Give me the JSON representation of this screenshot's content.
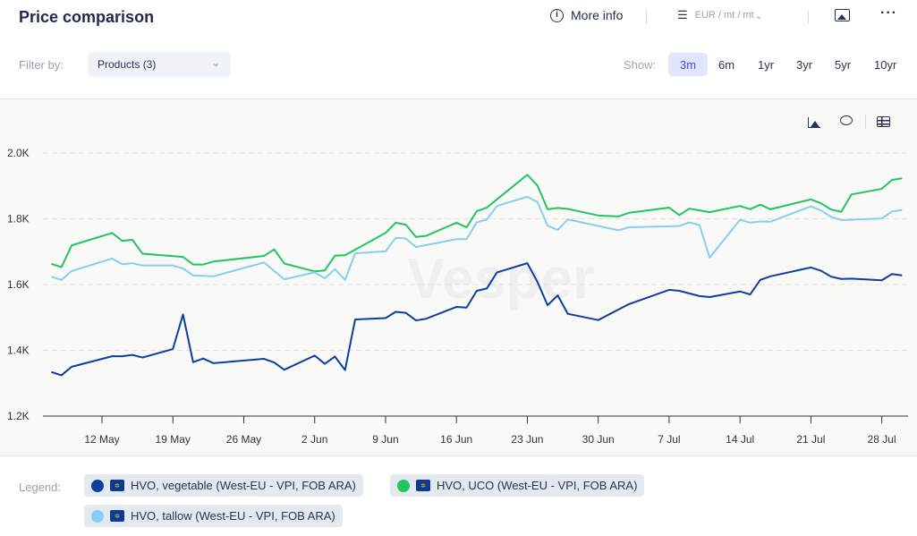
{
  "header": {
    "title": "Price comparison",
    "more_info": "More info",
    "unit": "EUR / mt / mt",
    "icons": [
      "info-icon",
      "sliders-icon",
      "image-icon",
      "more-icon"
    ]
  },
  "filter": {
    "label": "Filter by:",
    "value": "Products (3)"
  },
  "show": {
    "label": "Show:",
    "ranges": [
      "3m",
      "6m",
      "1yr",
      "3yr",
      "5yr",
      "10yr"
    ],
    "active": "3m"
  },
  "legend": {
    "label": "Legend:"
  },
  "watermark": "Vesper",
  "chart_data": {
    "type": "line",
    "title": "Price comparison",
    "x_unit": "days since 12 May",
    "xticks": [
      {
        "day": 0,
        "label": "12 May"
      },
      {
        "day": 7,
        "label": "19 May"
      },
      {
        "day": 14,
        "label": "26 May"
      },
      {
        "day": 21,
        "label": "2 Jun"
      },
      {
        "day": 28,
        "label": "9 Jun"
      },
      {
        "day": 35,
        "label": "16 Jun"
      },
      {
        "day": 42,
        "label": "23 Jun"
      },
      {
        "day": 49,
        "label": "30 Jun"
      },
      {
        "day": 56,
        "label": "7 Jul"
      },
      {
        "day": 63,
        "label": "14 Jul"
      },
      {
        "day": 70,
        "label": "21 Jul"
      },
      {
        "day": 77,
        "label": "28 Jul"
      }
    ],
    "yticks": [
      {
        "value": 1200,
        "label": "1.2K"
      },
      {
        "value": 1400,
        "label": "1.4K"
      },
      {
        "value": 1600,
        "label": "1.6K"
      },
      {
        "value": 1800,
        "label": "1.8K"
      },
      {
        "value": 2000,
        "label": "2.0K"
      }
    ],
    "ylim": [
      1200,
      2000
    ],
    "grid": true,
    "legend_position": "bottom",
    "series": [
      {
        "name": "HVO, vegetable (West-EU - VPI, FOB ARA)",
        "color": "#0b3fa0",
        "points": [
          [
            -5,
            1334
          ],
          [
            -4,
            1324
          ],
          [
            -3,
            1350
          ],
          [
            1,
            1382
          ],
          [
            2,
            1382
          ],
          [
            3,
            1386
          ],
          [
            4,
            1378
          ],
          [
            7,
            1404
          ],
          [
            8,
            1509
          ],
          [
            9,
            1364
          ],
          [
            10,
            1375
          ],
          [
            11,
            1361
          ],
          [
            16,
            1374
          ],
          [
            17,
            1363
          ],
          [
            18,
            1341
          ],
          [
            21,
            1384
          ],
          [
            22,
            1359
          ],
          [
            23,
            1381
          ],
          [
            24,
            1340
          ],
          [
            25,
            1494
          ],
          [
            28,
            1498
          ],
          [
            29,
            1517
          ],
          [
            30,
            1514
          ],
          [
            31,
            1491
          ],
          [
            32,
            1496
          ],
          [
            35,
            1532
          ],
          [
            36,
            1530
          ],
          [
            37,
            1581
          ],
          [
            38,
            1588
          ],
          [
            39,
            1637
          ],
          [
            42,
            1665
          ],
          [
            43,
            1608
          ],
          [
            44,
            1537
          ],
          [
            45,
            1567
          ],
          [
            46,
            1511
          ],
          [
            49,
            1492
          ],
          [
            52,
            1540
          ],
          [
            56,
            1584
          ],
          [
            57,
            1581
          ],
          [
            59,
            1565
          ],
          [
            60,
            1562
          ],
          [
            63,
            1579
          ],
          [
            64,
            1570
          ],
          [
            65,
            1614
          ],
          [
            66,
            1625
          ],
          [
            70,
            1652
          ],
          [
            71,
            1642
          ],
          [
            72,
            1624
          ],
          [
            73,
            1617
          ],
          [
            74,
            1618
          ],
          [
            77,
            1613
          ],
          [
            78,
            1632
          ],
          [
            79,
            1628
          ]
        ]
      },
      {
        "name": "HVO, UCO (West-EU - VPI, FOB ARA)",
        "color": "#22c55e",
        "points": [
          [
            -5,
            1663
          ],
          [
            -4,
            1653
          ],
          [
            -3,
            1719
          ],
          [
            1,
            1757
          ],
          [
            2,
            1733
          ],
          [
            3,
            1736
          ],
          [
            4,
            1694
          ],
          [
            8,
            1684
          ],
          [
            9,
            1661
          ],
          [
            10,
            1661
          ],
          [
            11,
            1670
          ],
          [
            16,
            1687
          ],
          [
            17,
            1707
          ],
          [
            18,
            1664
          ],
          [
            21,
            1640
          ],
          [
            22,
            1643
          ],
          [
            23,
            1688
          ],
          [
            24,
            1689
          ],
          [
            28,
            1757
          ],
          [
            29,
            1788
          ],
          [
            30,
            1782
          ],
          [
            31,
            1745
          ],
          [
            32,
            1748
          ],
          [
            35,
            1788
          ],
          [
            36,
            1774
          ],
          [
            37,
            1823
          ],
          [
            38,
            1834
          ],
          [
            39,
            1859
          ],
          [
            42,
            1934
          ],
          [
            43,
            1901
          ],
          [
            44,
            1829
          ],
          [
            45,
            1833
          ],
          [
            46,
            1830
          ],
          [
            49,
            1810
          ],
          [
            51,
            1807
          ],
          [
            52,
            1818
          ],
          [
            56,
            1834
          ],
          [
            57,
            1811
          ],
          [
            58,
            1831
          ],
          [
            60,
            1820
          ],
          [
            63,
            1839
          ],
          [
            64,
            1829
          ],
          [
            65,
            1843
          ],
          [
            66,
            1829
          ],
          [
            70,
            1859
          ],
          [
            71,
            1847
          ],
          [
            72,
            1828
          ],
          [
            73,
            1821
          ],
          [
            74,
            1874
          ],
          [
            77,
            1891
          ],
          [
            78,
            1918
          ],
          [
            79,
            1923
          ]
        ]
      },
      {
        "name": "HVO, tallow (West-EU - VPI, FOB ARA)",
        "color": "#87cef0",
        "points": [
          [
            -5,
            1624
          ],
          [
            -4,
            1614
          ],
          [
            -3,
            1641
          ],
          [
            1,
            1679
          ],
          [
            2,
            1662
          ],
          [
            3,
            1665
          ],
          [
            4,
            1658
          ],
          [
            7,
            1658
          ],
          [
            8,
            1649
          ],
          [
            9,
            1628
          ],
          [
            11,
            1625
          ],
          [
            16,
            1667
          ],
          [
            18,
            1616
          ],
          [
            21,
            1637
          ],
          [
            22,
            1619
          ],
          [
            23,
            1647
          ],
          [
            24,
            1614
          ],
          [
            25,
            1695
          ],
          [
            28,
            1701
          ],
          [
            29,
            1742
          ],
          [
            30,
            1740
          ],
          [
            31,
            1714
          ],
          [
            35,
            1738
          ],
          [
            36,
            1738
          ],
          [
            37,
            1789
          ],
          [
            38,
            1798
          ],
          [
            39,
            1839
          ],
          [
            42,
            1867
          ],
          [
            43,
            1851
          ],
          [
            44,
            1779
          ],
          [
            45,
            1766
          ],
          [
            46,
            1798
          ],
          [
            51,
            1765
          ],
          [
            52,
            1774
          ],
          [
            57,
            1778
          ],
          [
            58,
            1789
          ],
          [
            59,
            1781
          ],
          [
            60,
            1682
          ],
          [
            63,
            1797
          ],
          [
            64,
            1788
          ],
          [
            65,
            1792
          ],
          [
            66,
            1791
          ],
          [
            70,
            1838
          ],
          [
            71,
            1825
          ],
          [
            72,
            1806
          ],
          [
            73,
            1796
          ],
          [
            77,
            1801
          ],
          [
            78,
            1822
          ],
          [
            79,
            1827
          ]
        ]
      }
    ]
  }
}
